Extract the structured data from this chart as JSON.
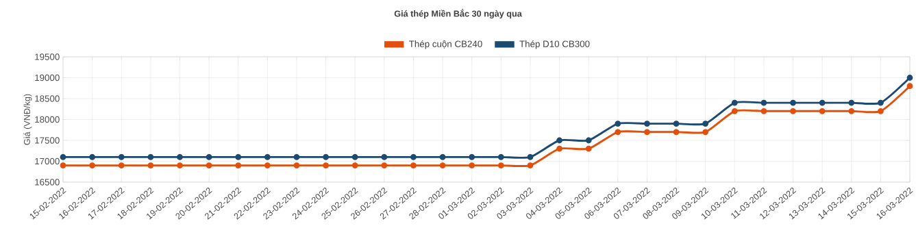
{
  "chart_data": {
    "type": "line",
    "title": "Giá thép Miền Bắc 30 ngày qua",
    "ylabel": "Giá (VNĐ/kg)",
    "categories": [
      "15-02-2022",
      "16-02-2022",
      "17-02-2022",
      "18-02-2022",
      "19-02-2022",
      "20-02-2022",
      "21-02-2022",
      "22-02-2022",
      "23-02-2022",
      "24-02-2022",
      "25-02-2022",
      "26-02-2022",
      "27-02-2022",
      "28-02-2022",
      "01-03-2022",
      "02-03-2022",
      "03-03-2022",
      "04-03-2022",
      "05-03-2022",
      "06-03-2022",
      "07-03-2022",
      "08-03-2022",
      "09-03-2022",
      "10-03-2022",
      "11-03-2022",
      "12-03-2022",
      "13-03-2022",
      "14-03-2022",
      "15-03-2022",
      "16-03-2022"
    ],
    "series": [
      {
        "name": "Thép cuộn CB240",
        "color": "#e2500e",
        "values": [
          16900,
          16900,
          16900,
          16900,
          16900,
          16900,
          16900,
          16900,
          16900,
          16900,
          16900,
          16900,
          16900,
          16900,
          16900,
          16900,
          16900,
          17300,
          17300,
          17700,
          17700,
          17700,
          17700,
          18200,
          18200,
          18200,
          18200,
          18200,
          18200,
          18800
        ]
      },
      {
        "name": "Thép D10 CB300",
        "color": "#1c4a70",
        "values": [
          17100,
          17100,
          17100,
          17100,
          17100,
          17100,
          17100,
          17100,
          17100,
          17100,
          17100,
          17100,
          17100,
          17100,
          17100,
          17100,
          17100,
          17500,
          17500,
          17900,
          17900,
          17900,
          17900,
          18400,
          18400,
          18400,
          18400,
          18400,
          18400,
          19000
        ]
      }
    ],
    "ylim": [
      16500,
      19500
    ],
    "yticks": [
      16500,
      17000,
      17500,
      18000,
      18500,
      19000,
      19500
    ],
    "grid": true,
    "legend": "top",
    "marker": "circle",
    "line_style": "solid"
  }
}
